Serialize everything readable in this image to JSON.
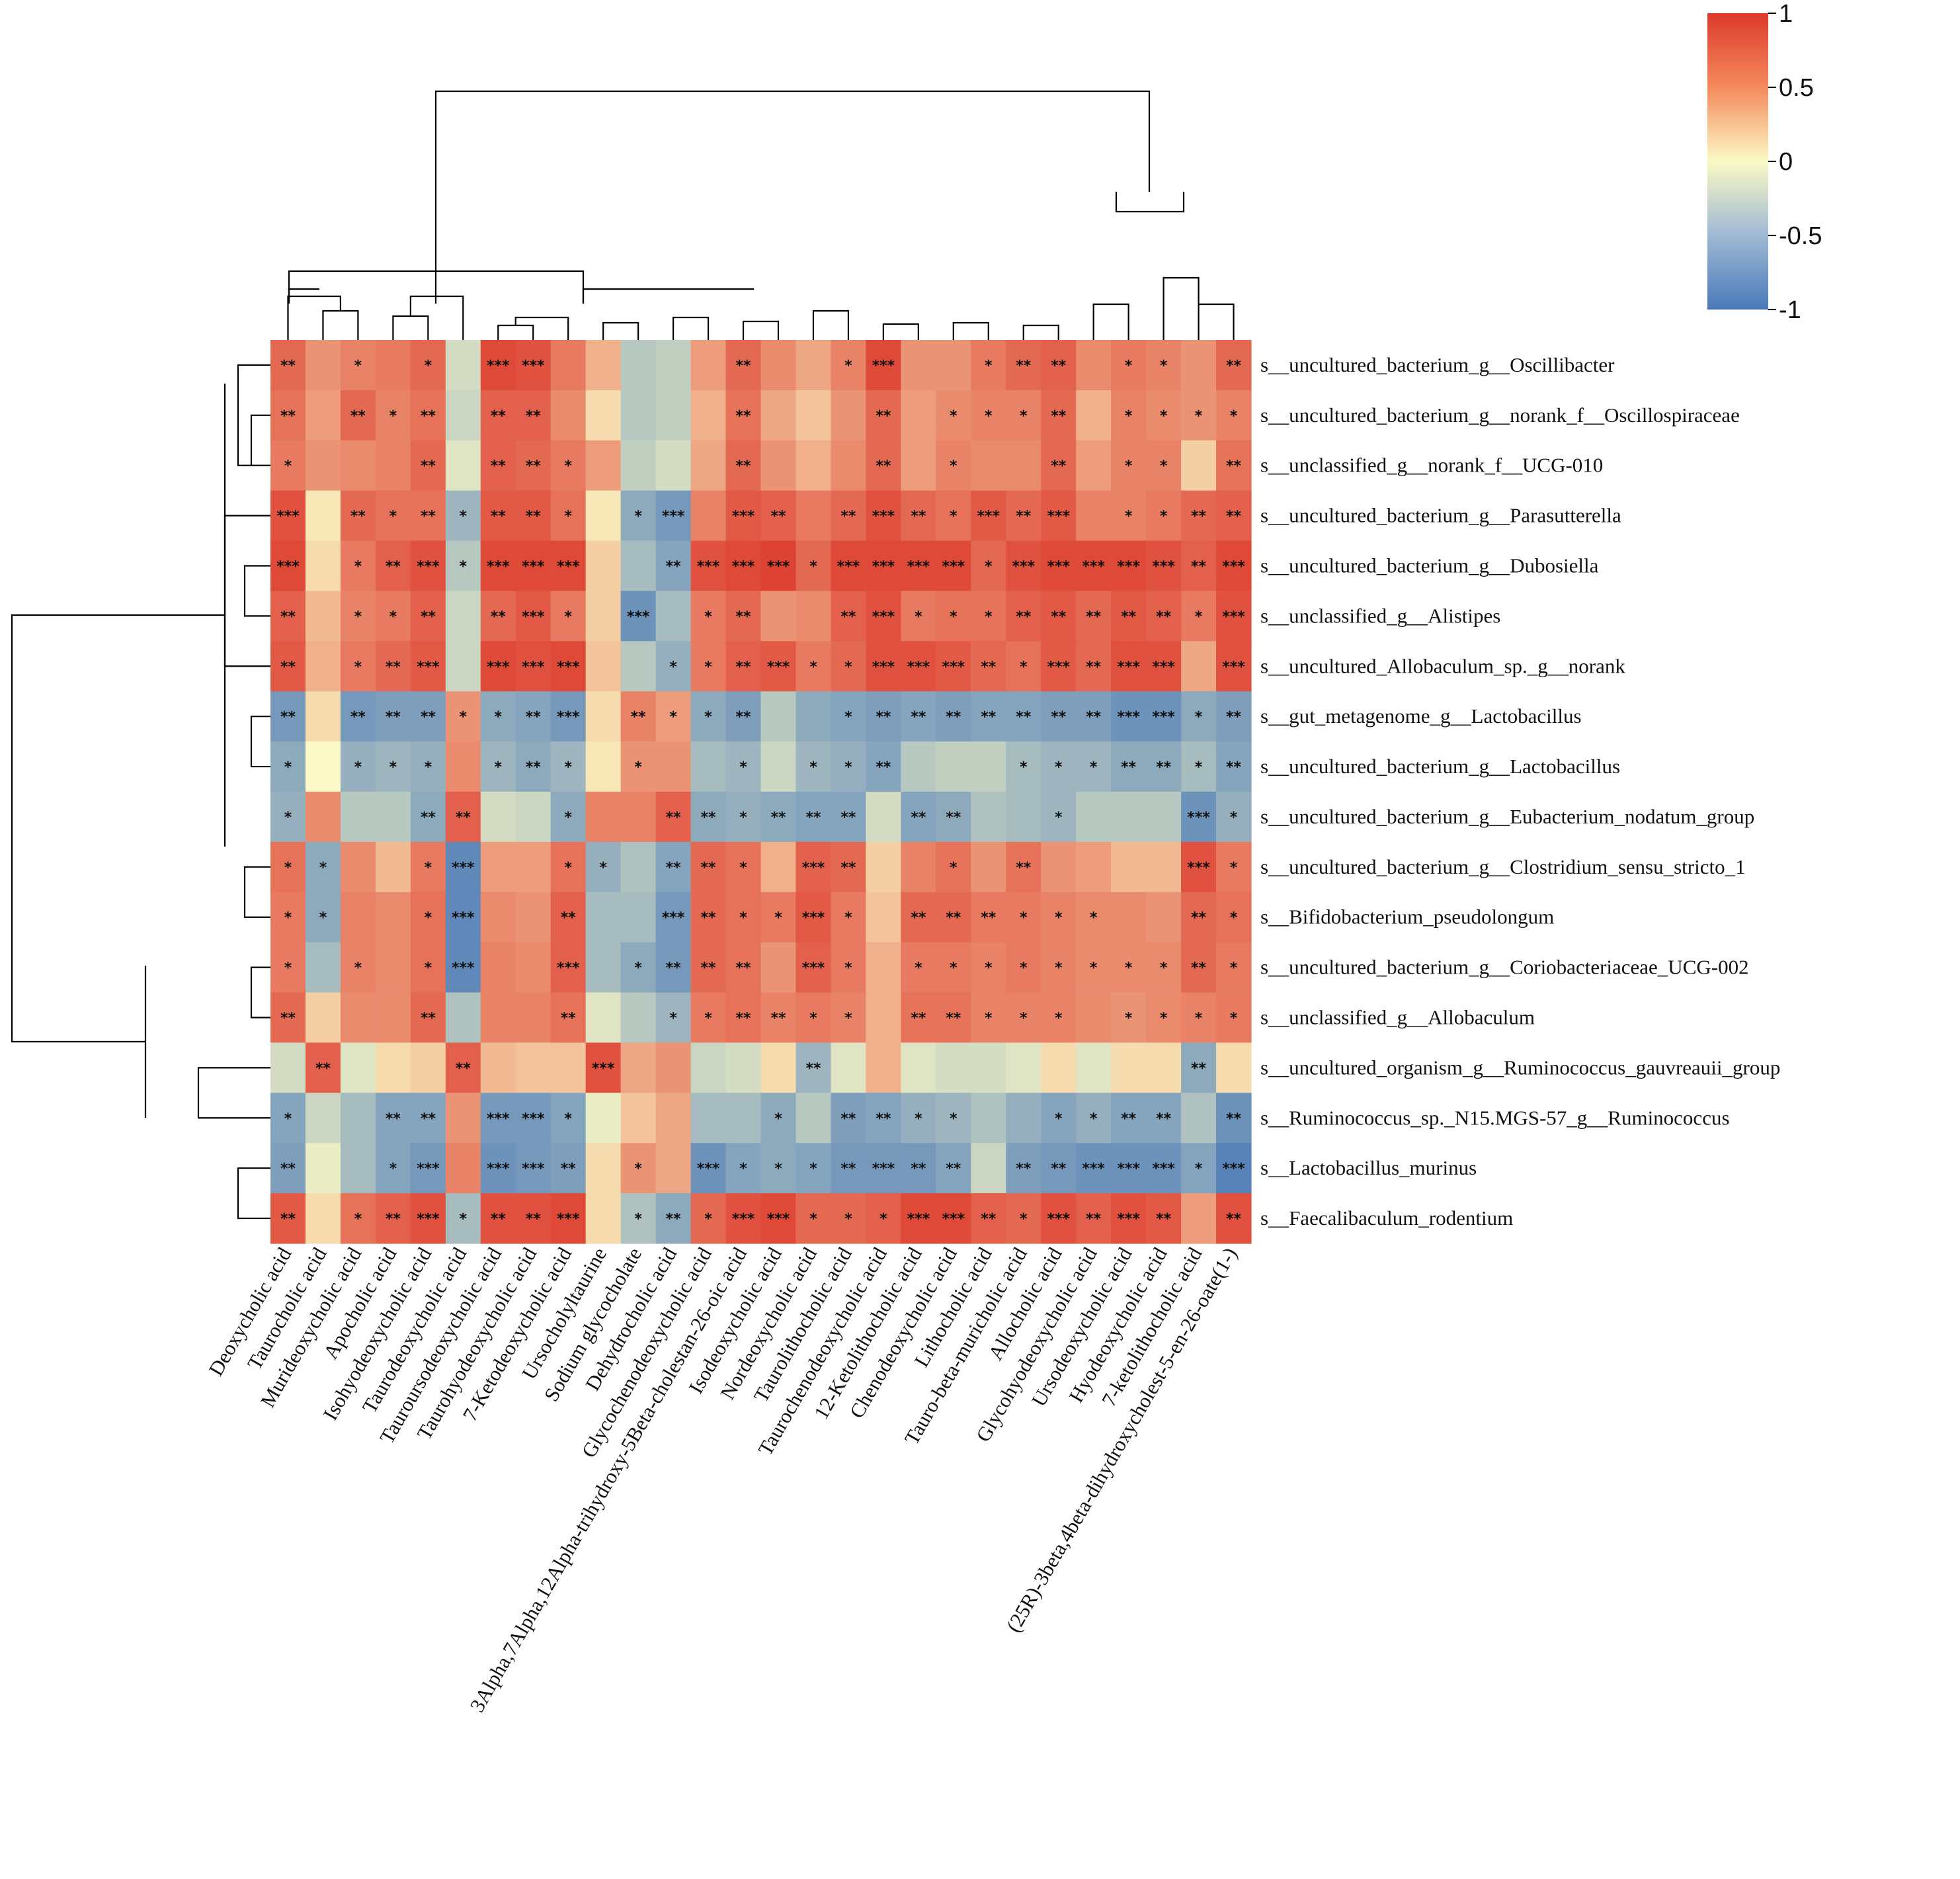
{
  "chart_data": {
    "type": "heatmap",
    "title": "",
    "xlabel": "",
    "ylabel": "",
    "colorscale": {
      "range": [
        -1,
        1
      ],
      "ticks": [
        {
          "value": 1,
          "label": "1"
        },
        {
          "value": 0.5,
          "label": "0.5"
        },
        {
          "value": 0,
          "label": "0"
        },
        {
          "value": -0.5,
          "label": "-0.5"
        },
        {
          "value": -1,
          "label": "-1"
        }
      ],
      "colors": {
        "low": "#4a79b8",
        "mid": "#fbf9c6",
        "high": "#dd3a2c"
      }
    },
    "rows": [
      "s__uncultured_bacterium_g__Oscillibacter",
      "s__uncultured_bacterium_g__norank_f__Oscillospiraceae",
      "s__unclassified_g__norank_f__UCG-010",
      "s__uncultured_bacterium_g__Parasutterella",
      "s__uncultured_bacterium_g__Dubosiella",
      "s__unclassified_g__Alistipes",
      "s__uncultured_Allobaculum_sp._g__norank",
      "s__gut_metagenome_g__Lactobacillus",
      "s__uncultured_bacterium_g__Lactobacillus",
      "s__uncultured_bacterium_g__Eubacterium_nodatum_group",
      "s__uncultured_bacterium_g__Clostridium_sensu_stricto_1",
      "s__Bifidobacterium_pseudolongum",
      "s__uncultured_bacterium_g__Coriobacteriaceae_UCG-002",
      "s__unclassified_g__Allobaculum",
      "s__uncultured_organism_g__Ruminococcus_gauvreauii_group",
      "s__Ruminococcus_sp._N15.MGS-57_g__Ruminococcus",
      "s__Lactobacillus_murinus",
      "s__Faecalibaculum_rodentium"
    ],
    "columns": [
      "Deoxycholic acid",
      "Taurocholic acid",
      "Murideoxycholic acid",
      "Apocholic acid",
      "Isohyodeoxycholic acid",
      "Taurodeoxycholic acid",
      "Tauroursodeoxycholic acid",
      "Taurohyodeoxycholic acid",
      "7-Ketodeoxycholic acid",
      "Ursocholyltaurine",
      "Sodium glycocholate",
      "Dehydrocholic acid",
      "Glycochenodeoxycholic acid",
      "3Alpha,7Alpha,12Alpha-trihydroxy-5Beta-cholestan-26-oic acid",
      "Isodeoxycholic acid",
      "Nordeoxycholic acid",
      "Taurolithocholic acid",
      "Taurochenodeoxycholic acid",
      "12-Ketolithocholic acid",
      "Chenodeoxycholic acid",
      "Lithocholic acid",
      "Tauro-beta-muricholic acid",
      "Allocholic acid",
      "Glycohyodeoxycholic acid",
      "Ursodeoxycholic acid",
      "Hyodeoxycholic acid",
      "7-ketolithocholic acid",
      "(25R)-3beta,4beta-dihydroxycholest-5-en-26-oate(1-)"
    ],
    "values": [
      [
        0.7,
        0.45,
        0.55,
        0.6,
        0.7,
        -0.15,
        0.9,
        0.85,
        0.6,
        0.3,
        -0.3,
        -0.25,
        0.4,
        0.7,
        0.5,
        0.35,
        0.55,
        0.9,
        0.45,
        0.45,
        0.6,
        0.7,
        0.75,
        0.5,
        0.6,
        0.55,
        0.45,
        0.7
      ],
      [
        0.65,
        0.4,
        0.7,
        0.55,
        0.65,
        -0.2,
        0.75,
        0.75,
        0.5,
        0.1,
        -0.3,
        -0.25,
        0.3,
        0.65,
        0.35,
        0.2,
        0.45,
        0.7,
        0.4,
        0.5,
        0.55,
        0.55,
        0.7,
        0.3,
        0.55,
        0.5,
        0.45,
        0.55
      ],
      [
        0.6,
        0.45,
        0.5,
        0.55,
        0.7,
        -0.1,
        0.75,
        0.7,
        0.6,
        0.4,
        -0.25,
        -0.15,
        0.35,
        0.7,
        0.45,
        0.3,
        0.5,
        0.7,
        0.4,
        0.55,
        0.5,
        0.5,
        0.7,
        0.4,
        0.55,
        0.55,
        0.15,
        0.65
      ],
      [
        0.85,
        0.05,
        0.7,
        0.65,
        0.65,
        -0.45,
        0.8,
        0.8,
        0.65,
        0.05,
        -0.55,
        -0.7,
        0.55,
        0.8,
        0.75,
        0.6,
        0.7,
        0.85,
        0.7,
        0.65,
        0.8,
        0.7,
        0.8,
        0.55,
        0.55,
        0.6,
        0.7,
        0.75
      ],
      [
        0.9,
        0.1,
        0.6,
        0.75,
        0.85,
        -0.3,
        0.9,
        0.9,
        0.9,
        0.15,
        -0.4,
        -0.6,
        0.85,
        0.9,
        0.95,
        0.7,
        0.9,
        0.9,
        0.9,
        0.9,
        0.7,
        0.85,
        0.9,
        0.9,
        0.9,
        0.85,
        0.75,
        0.9
      ],
      [
        0.75,
        0.25,
        0.55,
        0.6,
        0.75,
        -0.2,
        0.7,
        0.8,
        0.6,
        0.15,
        -0.75,
        -0.4,
        0.6,
        0.7,
        0.45,
        0.5,
        0.75,
        0.85,
        0.6,
        0.65,
        0.65,
        0.75,
        0.8,
        0.7,
        0.8,
        0.75,
        0.6,
        0.85
      ],
      [
        0.8,
        0.3,
        0.6,
        0.7,
        0.8,
        -0.2,
        0.9,
        0.85,
        0.9,
        0.2,
        -0.3,
        -0.5,
        0.6,
        0.75,
        0.8,
        0.6,
        0.7,
        0.85,
        0.85,
        0.8,
        0.7,
        0.65,
        0.8,
        0.7,
        0.85,
        0.85,
        0.35,
        0.85
      ],
      [
        -0.7,
        0.1,
        -0.7,
        -0.65,
        -0.65,
        0.45,
        -0.55,
        -0.6,
        -0.7,
        0.1,
        0.55,
        0.4,
        -0.55,
        -0.65,
        -0.3,
        -0.55,
        -0.6,
        -0.65,
        -0.6,
        -0.65,
        -0.6,
        -0.6,
        -0.65,
        -0.65,
        -0.75,
        -0.75,
        -0.55,
        -0.65
      ],
      [
        -0.55,
        0.0,
        -0.5,
        -0.45,
        -0.5,
        0.5,
        -0.45,
        -0.55,
        -0.45,
        0.05,
        0.45,
        0.45,
        -0.4,
        -0.45,
        -0.2,
        -0.45,
        -0.5,
        -0.6,
        -0.3,
        -0.25,
        -0.25,
        -0.4,
        -0.45,
        -0.45,
        -0.55,
        -0.55,
        -0.4,
        -0.6
      ],
      [
        -0.5,
        0.5,
        -0.3,
        -0.3,
        -0.55,
        0.75,
        -0.15,
        -0.2,
        -0.55,
        0.55,
        0.55,
        0.75,
        -0.55,
        -0.5,
        -0.55,
        -0.6,
        -0.6,
        -0.15,
        -0.6,
        -0.55,
        -0.35,
        -0.4,
        -0.45,
        -0.3,
        -0.3,
        -0.3,
        -0.75,
        -0.5
      ],
      [
        0.65,
        -0.55,
        0.5,
        0.25,
        0.6,
        -0.85,
        0.4,
        0.4,
        0.65,
        -0.5,
        -0.35,
        -0.6,
        0.7,
        0.65,
        0.3,
        0.75,
        0.7,
        0.15,
        0.55,
        0.65,
        0.45,
        0.65,
        0.45,
        0.4,
        0.25,
        0.25,
        0.85,
        0.6
      ],
      [
        0.6,
        -0.55,
        0.55,
        0.5,
        0.65,
        -0.85,
        0.5,
        0.45,
        0.75,
        -0.4,
        -0.4,
        -0.7,
        0.7,
        0.65,
        0.6,
        0.8,
        0.6,
        0.2,
        0.7,
        0.7,
        0.6,
        0.6,
        0.55,
        0.5,
        0.5,
        0.45,
        0.7,
        0.65
      ],
      [
        0.6,
        -0.4,
        0.55,
        0.5,
        0.65,
        -0.85,
        0.55,
        0.5,
        0.75,
        -0.4,
        -0.55,
        -0.7,
        0.7,
        0.65,
        0.45,
        0.75,
        0.6,
        0.3,
        0.6,
        0.6,
        0.55,
        0.6,
        0.55,
        0.5,
        0.5,
        0.5,
        0.7,
        0.6
      ],
      [
        0.7,
        0.15,
        0.5,
        0.5,
        0.7,
        -0.35,
        0.55,
        0.55,
        0.65,
        -0.1,
        -0.3,
        -0.45,
        0.6,
        0.65,
        0.55,
        0.6,
        0.55,
        0.3,
        0.65,
        0.65,
        0.55,
        0.55,
        0.55,
        0.5,
        0.45,
        0.5,
        0.55,
        0.6
      ],
      [
        -0.15,
        0.75,
        -0.1,
        0.1,
        0.15,
        0.75,
        0.25,
        0.2,
        0.2,
        0.85,
        0.35,
        0.45,
        -0.2,
        -0.15,
        0.1,
        -0.45,
        -0.1,
        0.3,
        -0.1,
        -0.15,
        -0.15,
        -0.1,
        0.1,
        -0.1,
        0.1,
        0.1,
        -0.55,
        0.1
      ],
      [
        -0.6,
        -0.2,
        -0.4,
        -0.6,
        -0.6,
        0.45,
        -0.7,
        -0.7,
        -0.6,
        -0.05,
        0.2,
        0.35,
        -0.4,
        -0.4,
        -0.55,
        -0.3,
        -0.65,
        -0.6,
        -0.5,
        -0.45,
        -0.35,
        -0.5,
        -0.6,
        -0.5,
        -0.6,
        -0.6,
        -0.35,
        -0.75
      ],
      [
        -0.65,
        -0.05,
        -0.4,
        -0.6,
        -0.7,
        0.55,
        -0.75,
        -0.7,
        -0.65,
        0.1,
        0.45,
        0.35,
        -0.75,
        -0.6,
        -0.55,
        -0.6,
        -0.7,
        -0.7,
        -0.7,
        -0.6,
        -0.2,
        -0.65,
        -0.7,
        -0.75,
        -0.75,
        -0.75,
        -0.6,
        -0.9
      ],
      [
        0.8,
        0.1,
        0.65,
        0.75,
        0.85,
        -0.4,
        0.85,
        0.85,
        0.9,
        0.1,
        -0.35,
        -0.55,
        0.7,
        0.85,
        0.9,
        0.7,
        0.7,
        0.75,
        0.9,
        0.9,
        0.75,
        0.7,
        0.85,
        0.75,
        0.85,
        0.8,
        0.4,
        0.85
      ]
    ],
    "significance": [
      [
        "**",
        "",
        "*",
        "",
        "*",
        "",
        "***",
        "***",
        "",
        "",
        "",
        "",
        "",
        "**",
        "",
        "",
        "*",
        "***",
        "",
        "",
        "*",
        "**",
        "**",
        "",
        "*",
        "*",
        "",
        "**"
      ],
      [
        "**",
        "",
        "**",
        "*",
        "**",
        "",
        "**",
        "**",
        "",
        "",
        "",
        "",
        "",
        "**",
        "",
        "",
        "",
        "**",
        "",
        "*",
        "*",
        "*",
        "**",
        "",
        "*",
        "*",
        "*",
        "*"
      ],
      [
        "*",
        "",
        "",
        "",
        "**",
        "",
        "**",
        "**",
        "*",
        "",
        "",
        "",
        "",
        "**",
        "",
        "",
        "",
        "**",
        "",
        "*",
        "",
        "",
        "**",
        "",
        "*",
        "*",
        "",
        "**"
      ],
      [
        "***",
        "",
        "**",
        "*",
        "**",
        "*",
        "**",
        "**",
        "*",
        "",
        "*",
        "***",
        "",
        "***",
        "**",
        "",
        "**",
        "***",
        "**",
        "*",
        "***",
        "**",
        "***",
        "",
        "*",
        "*",
        "**",
        "**"
      ],
      [
        "***",
        "",
        "*",
        "**",
        "***",
        "*",
        "***",
        "***",
        "***",
        "",
        "",
        "**",
        "***",
        "***",
        "***",
        "*",
        "***",
        "***",
        "***",
        "***",
        "*",
        "***",
        "***",
        "***",
        "***",
        "***",
        "**",
        "***"
      ],
      [
        "**",
        "",
        "*",
        "*",
        "**",
        "",
        "**",
        "***",
        "*",
        "",
        "***",
        "",
        "*",
        "**",
        "",
        "",
        "**",
        "***",
        "*",
        "*",
        "*",
        "**",
        "**",
        "**",
        "**",
        "**",
        "*",
        "***"
      ],
      [
        "**",
        "",
        "*",
        "**",
        "***",
        "",
        "***",
        "***",
        "***",
        "",
        "",
        "*",
        "*",
        "**",
        "***",
        "*",
        "*",
        "***",
        "***",
        "***",
        "**",
        "*",
        "***",
        "**",
        "***",
        "***",
        "",
        "***"
      ],
      [
        "**",
        "",
        "**",
        "**",
        "**",
        "*",
        "*",
        "**",
        "***",
        "",
        "**",
        "*",
        "*",
        "**",
        "",
        "",
        "*",
        "**",
        "**",
        "**",
        "**",
        "**",
        "**",
        "**",
        "***",
        "***",
        "*",
        "**"
      ],
      [
        "*",
        "",
        "*",
        "*",
        "*",
        "",
        "*",
        "**",
        "*",
        "",
        "*",
        "",
        "",
        "*",
        "",
        "*",
        "*",
        "**",
        "",
        "",
        "",
        "*",
        "*",
        "*",
        "**",
        "**",
        "*",
        "**"
      ],
      [
        "*",
        "",
        "",
        "",
        "**",
        "**",
        "",
        "",
        "*",
        "",
        "",
        "**",
        "**",
        "*",
        "**",
        "**",
        "**",
        "",
        "**",
        "**",
        "",
        "",
        "*",
        "",
        "",
        "",
        "***",
        "*"
      ],
      [
        "*",
        "*",
        "",
        "",
        "*",
        "***",
        "",
        "",
        "*",
        "*",
        "",
        "**",
        "**",
        "*",
        "",
        "***",
        "**",
        "",
        "",
        "*",
        "",
        "**",
        "",
        "",
        "",
        "",
        "***",
        "*"
      ],
      [
        "*",
        "*",
        "",
        "",
        "*",
        "***",
        "",
        "",
        "**",
        "",
        "",
        "***",
        "**",
        "*",
        "*",
        "***",
        "*",
        "",
        "**",
        "**",
        "**",
        "*",
        "*",
        "*",
        "",
        "",
        "**",
        "*"
      ],
      [
        "*",
        "",
        "*",
        "",
        "*",
        "***",
        "",
        "",
        "***",
        "",
        "*",
        "**",
        "**",
        "**",
        "",
        "***",
        "*",
        "",
        "*",
        "*",
        "*",
        "*",
        "*",
        "*",
        "*",
        "*",
        "**",
        "*"
      ],
      [
        "**",
        "",
        "",
        "",
        "**",
        "",
        "",
        "",
        "**",
        "",
        "",
        "*",
        "*",
        "**",
        "**",
        "*",
        "*",
        "",
        "**",
        "**",
        "*",
        "*",
        "*",
        "",
        "*",
        "*",
        "*",
        "*"
      ],
      [
        "",
        "**",
        "",
        "",
        "",
        "**",
        "",
        "",
        "",
        "***",
        "",
        "",
        "",
        "",
        "",
        "**",
        "",
        "",
        "",
        "",
        "",
        "",
        "",
        "",
        "",
        "",
        "**",
        ""
      ],
      [
        "*",
        "",
        "",
        "**",
        "**",
        "",
        "***",
        "***",
        "*",
        "",
        "",
        "",
        "",
        "",
        "*",
        "",
        "**",
        "**",
        "*",
        "*",
        "",
        "",
        "*",
        "*",
        "**",
        "**",
        "",
        "**"
      ],
      [
        "**",
        "",
        "",
        "*",
        "***",
        "",
        "***",
        "***",
        "**",
        "",
        "*",
        "",
        "***",
        "*",
        "*",
        "*",
        "**",
        "***",
        "**",
        "**",
        "",
        "**",
        "**",
        "***",
        "***",
        "***",
        "*",
        "***"
      ],
      [
        "**",
        "",
        "*",
        "**",
        "***",
        "*",
        "**",
        "**",
        "***",
        "",
        "*",
        "**",
        "*",
        "***",
        "***",
        "*",
        "*",
        "*",
        "***",
        "***",
        "**",
        "*",
        "***",
        "**",
        "***",
        "**",
        "",
        "**"
      ]
    ]
  }
}
